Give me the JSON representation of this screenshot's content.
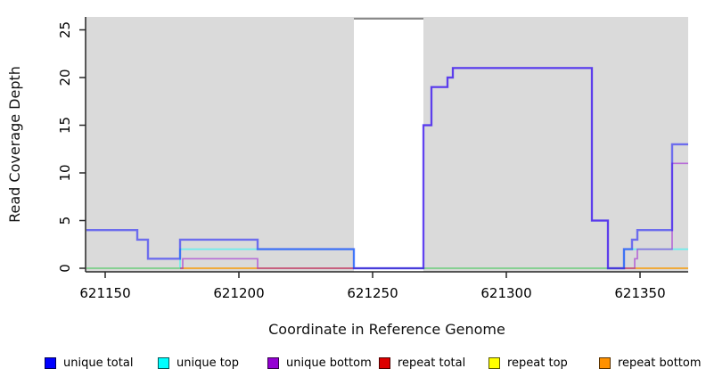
{
  "chart_data": {
    "type": "line",
    "subtype": "step-coverage",
    "title": "",
    "xlabel": "Coordinate in Reference Genome",
    "ylabel": "Read Coverage Depth",
    "xlim": [
      621143,
      621368
    ],
    "ylim": [
      0,
      26.4
    ],
    "x_ticks": [
      621150,
      621200,
      621250,
      621300,
      621350
    ],
    "y_ticks": [
      0,
      5,
      10,
      15,
      20,
      25
    ],
    "grid": "off",
    "plot_background": "#DADADA",
    "masked_region": {
      "x_start": 621243,
      "x_end": 621269,
      "fill": "#FFFFFF",
      "border_top": "#8A8A8A"
    },
    "axis_color": "#262626",
    "line_opacity": 0.5,
    "series": [
      {
        "name": "unique total",
        "color": "#0000FF",
        "width": 2.4,
        "step_points": [
          [
            621143,
            4
          ],
          [
            621162,
            3
          ],
          [
            621166,
            1
          ],
          [
            621178,
            3
          ],
          [
            621207,
            2
          ],
          [
            621243,
            0
          ],
          [
            621269,
            15
          ],
          [
            621272,
            19
          ],
          [
            621278,
            20
          ],
          [
            621280,
            21
          ],
          [
            621332,
            5
          ],
          [
            621338,
            0
          ],
          [
            621344,
            2
          ],
          [
            621347,
            3
          ],
          [
            621349,
            4
          ],
          [
            621362,
            13
          ],
          [
            621368,
            13
          ]
        ]
      },
      {
        "name": "unique top",
        "color": "#00FFFF",
        "width": 1.7,
        "step_points": [
          [
            621143,
            0
          ],
          [
            621178,
            2
          ],
          [
            621243,
            0
          ],
          [
            621344,
            2
          ],
          [
            621368,
            2
          ]
        ]
      },
      {
        "name": "unique bottom",
        "color": "#9400D3",
        "width": 1.7,
        "step_points": [
          [
            621178,
            0
          ],
          [
            621179,
            1
          ],
          [
            621207,
            0
          ],
          [
            621269,
            15
          ],
          [
            621272,
            19
          ],
          [
            621278,
            20
          ],
          [
            621280,
            21
          ],
          [
            621332,
            5
          ],
          [
            621338,
            0
          ],
          [
            621348,
            1
          ],
          [
            621349,
            2
          ],
          [
            621362,
            11
          ],
          [
            621368,
            11
          ]
        ]
      },
      {
        "name": "repeat total",
        "color": "#DD0000",
        "width": 1.6,
        "step_points": [
          [
            621143,
            0
          ],
          [
            621368,
            0
          ]
        ]
      },
      {
        "name": "repeat top",
        "color": "#FFFF00",
        "width": 1.6,
        "step_points": [
          [
            621143,
            0
          ],
          [
            621368,
            0
          ]
        ]
      },
      {
        "name": "repeat bottom",
        "color": "#FF9100",
        "width": 1.6,
        "step_points": [
          [
            621143,
            0
          ],
          [
            621368,
            0
          ]
        ]
      }
    ],
    "draw_order": [
      "repeat total",
      "repeat top",
      "repeat bottom",
      "unique top",
      "unique bottom",
      "unique total"
    ],
    "legend_position": "bottom"
  },
  "legend": {
    "items": [
      {
        "label": "unique total",
        "color": "#0000FF"
      },
      {
        "label": "unique top",
        "color": "#00FFFF"
      },
      {
        "label": "unique bottom",
        "color": "#9400D3"
      },
      {
        "label": "repeat total",
        "color": "#DD0000"
      },
      {
        "label": "repeat top",
        "color": "#FFFF00"
      },
      {
        "label": "repeat bottom",
        "color": "#FF9100"
      }
    ]
  }
}
